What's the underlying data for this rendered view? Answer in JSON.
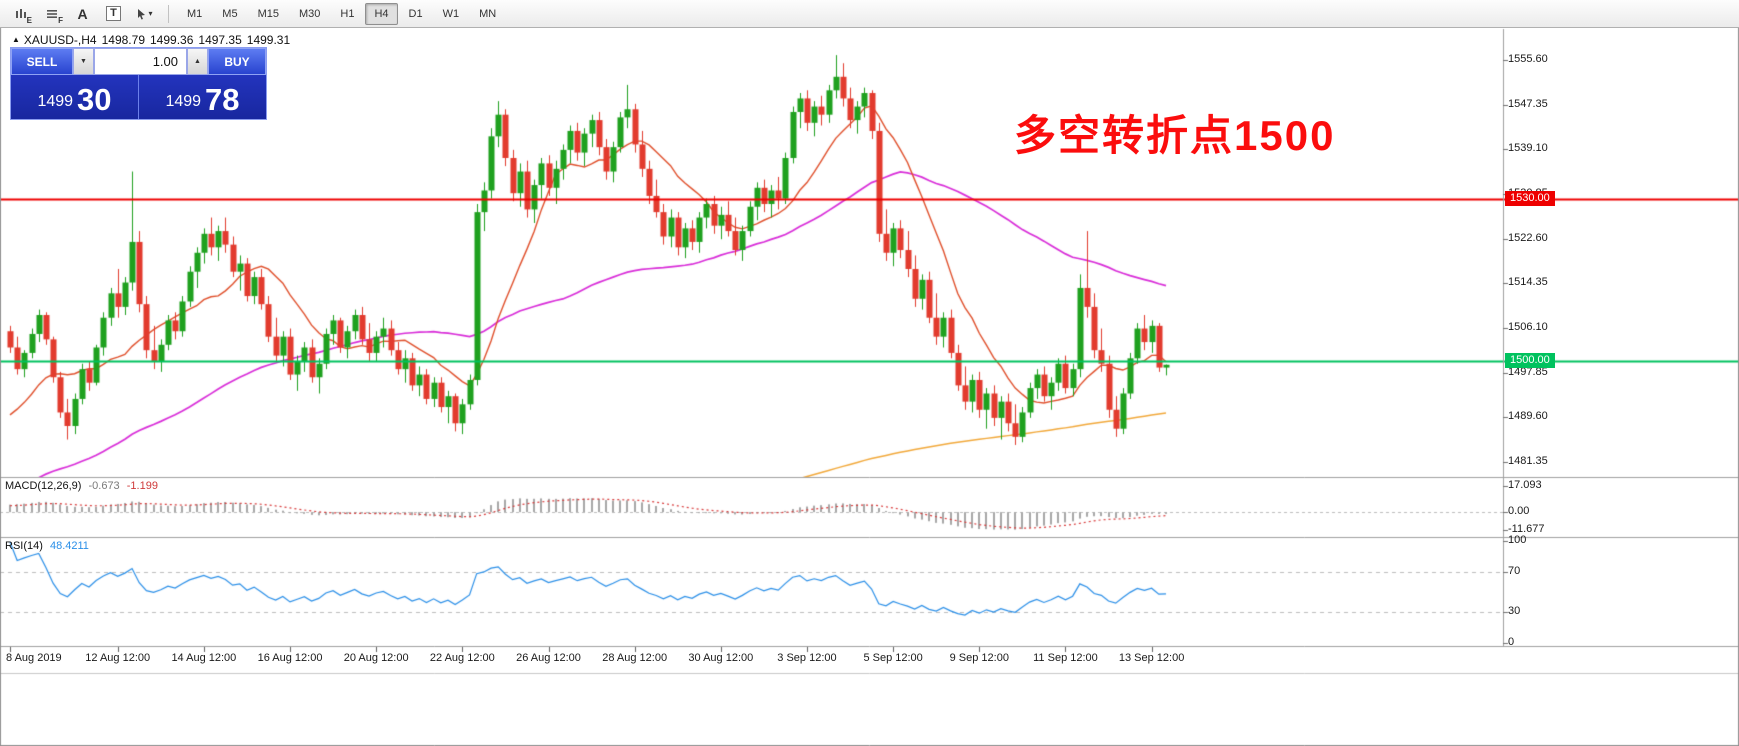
{
  "toolbar": {
    "icon_buttons": [
      {
        "name": "bars-chart-icon",
        "label": "E"
      },
      {
        "name": "lines-chart-icon",
        "label": "F"
      },
      {
        "name": "label-tool-icon",
        "label": "A"
      },
      {
        "name": "text-tool-icon",
        "label": "T"
      },
      {
        "name": "cursor-dropdown-icon",
        "label": "▾"
      }
    ],
    "timeframes": [
      {
        "label": "M1",
        "active": false
      },
      {
        "label": "M5",
        "active": false
      },
      {
        "label": "M15",
        "active": false
      },
      {
        "label": "M30",
        "active": false
      },
      {
        "label": "H1",
        "active": false
      },
      {
        "label": "H4",
        "active": true
      },
      {
        "label": "D1",
        "active": false
      },
      {
        "label": "W1",
        "active": false
      },
      {
        "label": "MN",
        "active": false
      }
    ]
  },
  "chart": {
    "ohlc_header": {
      "marker": "▲",
      "symbol_timeframe": "XAUUSD-,H4",
      "open": "1498.79",
      "high": "1499.36",
      "low": "1497.35",
      "close": "1499.31"
    },
    "trade_panel": {
      "sell_label": "SELL",
      "buy_label": "BUY",
      "volume": "1.00",
      "down_glyph": "▼",
      "up_glyph": "▲",
      "sell_big": "1499",
      "sell_pips": "30",
      "buy_big": "1499",
      "buy_pips": "78"
    },
    "annotation": {
      "text": "多空转折点1500",
      "color": "#fb0d0d"
    },
    "hlines": [
      {
        "price": 1530.0,
        "tag": "1530.00",
        "color": "#ee0000",
        "tag_text_color": "#ffffff"
      },
      {
        "price": 1500.0,
        "tag": "1500.00",
        "color": "#00c25e",
        "tag_text_color": "#ffffff"
      }
    ]
  },
  "chart_data": {
    "type": "candlestick",
    "symbol": "XAUUSD-",
    "timeframe": "H4",
    "price_axis_ticks": [
      "1555.60",
      "1547.35",
      "1539.10",
      "1530.85",
      "1522.60",
      "1514.35",
      "1506.10",
      "1497.85",
      "1489.60",
      "1481.35"
    ],
    "x_labels": [
      {
        "text": "8 Aug 2019",
        "bar": 0
      },
      {
        "text": "12 Aug 12:00",
        "bar": 15
      },
      {
        "text": "14 Aug 12:00",
        "bar": 27
      },
      {
        "text": "16 Aug 12:00",
        "bar": 39
      },
      {
        "text": "20 Aug 12:00",
        "bar": 51
      },
      {
        "text": "22 Aug 12:00",
        "bar": 63
      },
      {
        "text": "26 Aug 12:00",
        "bar": 75
      },
      {
        "text": "28 Aug 12:00",
        "bar": 87
      },
      {
        "text": "30 Aug 12:00",
        "bar": 99
      },
      {
        "text": "3 Sep 12:00",
        "bar": 111
      },
      {
        "text": "5 Sep 12:00",
        "bar": 123
      },
      {
        "text": "9 Sep 12:00",
        "bar": 135
      },
      {
        "text": "11 Sep 12:00",
        "bar": 147
      },
      {
        "text": "13 Sep 12:00",
        "bar": 159
      }
    ],
    "candles": [
      [
        1505.5,
        1506.5,
        1501.5,
        1502.5
      ],
      [
        1502.5,
        1504.5,
        1497.5,
        1498.5
      ],
      [
        1498.5,
        1502.0,
        1497.0,
        1501.5
      ],
      [
        1501.5,
        1506.0,
        1500.5,
        1505.0
      ],
      [
        1505.0,
        1509.5,
        1503.5,
        1508.5
      ],
      [
        1508.5,
        1509.0,
        1503.0,
        1504.0
      ],
      [
        1504.0,
        1504.5,
        1496.0,
        1497.0
      ],
      [
        1497.0,
        1498.0,
        1489.5,
        1490.5
      ],
      [
        1490.5,
        1493.0,
        1485.5,
        1488.0
      ],
      [
        1488.0,
        1494.0,
        1486.5,
        1493.0
      ],
      [
        1493.0,
        1499.5,
        1492.0,
        1498.5
      ],
      [
        1498.5,
        1500.0,
        1494.5,
        1496.0
      ],
      [
        1496.0,
        1503.0,
        1495.5,
        1502.5
      ],
      [
        1502.5,
        1509.0,
        1501.0,
        1508.0
      ],
      [
        1508.0,
        1513.5,
        1506.5,
        1512.5
      ],
      [
        1512.5,
        1517.0,
        1508.0,
        1510.0
      ],
      [
        1510.0,
        1515.5,
        1508.5,
        1514.5
      ],
      [
        1514.5,
        1535.0,
        1513.0,
        1522.0
      ],
      [
        1522.0,
        1524.0,
        1509.0,
        1510.5
      ],
      [
        1510.5,
        1512.0,
        1500.5,
        1502.0
      ],
      [
        1502.0,
        1506.5,
        1498.5,
        1500.0
      ],
      [
        1500.0,
        1504.0,
        1498.0,
        1503.0
      ],
      [
        1503.0,
        1508.5,
        1502.0,
        1507.5
      ],
      [
        1507.5,
        1509.0,
        1504.0,
        1505.5
      ],
      [
        1505.5,
        1512.0,
        1504.5,
        1511.0
      ],
      [
        1511.0,
        1517.5,
        1510.0,
        1516.5
      ],
      [
        1516.5,
        1521.0,
        1513.5,
        1520.0
      ],
      [
        1520.0,
        1524.5,
        1518.0,
        1523.5
      ],
      [
        1523.5,
        1526.5,
        1519.5,
        1521.0
      ],
      [
        1521.0,
        1525.0,
        1518.5,
        1524.0
      ],
      [
        1524.0,
        1526.5,
        1520.0,
        1521.5
      ],
      [
        1521.5,
        1523.0,
        1515.5,
        1516.5
      ],
      [
        1516.5,
        1519.5,
        1513.0,
        1518.0
      ],
      [
        1518.0,
        1519.0,
        1511.0,
        1512.0
      ],
      [
        1512.0,
        1516.5,
        1510.5,
        1515.5
      ],
      [
        1515.5,
        1517.0,
        1509.5,
        1510.5
      ],
      [
        1510.5,
        1512.0,
        1503.5,
        1504.5
      ],
      [
        1504.5,
        1508.0,
        1500.0,
        1501.0
      ],
      [
        1501.0,
        1505.5,
        1499.0,
        1504.5
      ],
      [
        1504.5,
        1506.0,
        1496.5,
        1497.5
      ],
      [
        1497.5,
        1501.0,
        1494.5,
        1500.0
      ],
      [
        1500.0,
        1503.5,
        1498.0,
        1502.5
      ],
      [
        1502.5,
        1504.0,
        1496.0,
        1497.0
      ],
      [
        1497.0,
        1500.5,
        1494.0,
        1499.5
      ],
      [
        1499.5,
        1506.0,
        1498.5,
        1505.0
      ],
      [
        1505.0,
        1508.5,
        1503.0,
        1507.5
      ],
      [
        1507.5,
        1508.0,
        1501.5,
        1502.5
      ],
      [
        1502.5,
        1506.5,
        1500.5,
        1505.5
      ],
      [
        1505.5,
        1509.5,
        1504.0,
        1508.5
      ],
      [
        1508.5,
        1510.0,
        1503.0,
        1504.0
      ],
      [
        1504.0,
        1507.0,
        1500.0,
        1501.5
      ],
      [
        1501.5,
        1505.5,
        1500.0,
        1504.5
      ],
      [
        1504.5,
        1508.0,
        1502.5,
        1506.0
      ],
      [
        1506.0,
        1507.5,
        1501.0,
        1502.0
      ],
      [
        1502.0,
        1503.5,
        1497.5,
        1498.5
      ],
      [
        1498.5,
        1502.0,
        1496.0,
        1500.5
      ],
      [
        1500.5,
        1501.5,
        1494.5,
        1495.5
      ],
      [
        1495.5,
        1499.0,
        1493.5,
        1497.5
      ],
      [
        1497.5,
        1498.5,
        1492.0,
        1493.0
      ],
      [
        1493.0,
        1497.0,
        1491.5,
        1496.0
      ],
      [
        1496.0,
        1497.0,
        1490.5,
        1491.5
      ],
      [
        1491.5,
        1494.5,
        1488.5,
        1493.5
      ],
      [
        1493.5,
        1494.0,
        1487.0,
        1488.5
      ],
      [
        1488.5,
        1493.0,
        1486.5,
        1492.0
      ],
      [
        1492.0,
        1497.5,
        1491.0,
        1496.5
      ],
      [
        1496.5,
        1529.0,
        1495.5,
        1527.5
      ],
      [
        1527.5,
        1533.0,
        1524.0,
        1531.5
      ],
      [
        1531.5,
        1543.0,
        1530.0,
        1541.5
      ],
      [
        1541.5,
        1548.0,
        1539.5,
        1545.5
      ],
      [
        1545.5,
        1546.5,
        1536.0,
        1537.5
      ],
      [
        1537.5,
        1539.0,
        1529.5,
        1531.0
      ],
      [
        1531.0,
        1536.5,
        1528.5,
        1535.0
      ],
      [
        1535.0,
        1537.0,
        1526.5,
        1528.0
      ],
      [
        1528.0,
        1533.5,
        1525.5,
        1532.5
      ],
      [
        1532.5,
        1537.5,
        1530.0,
        1536.5
      ],
      [
        1536.5,
        1538.0,
        1530.5,
        1532.0
      ],
      [
        1532.0,
        1537.0,
        1529.0,
        1535.5
      ],
      [
        1535.5,
        1540.0,
        1533.5,
        1539.0
      ],
      [
        1539.0,
        1543.5,
        1536.5,
        1542.5
      ],
      [
        1542.5,
        1544.0,
        1537.0,
        1538.5
      ],
      [
        1538.5,
        1543.0,
        1536.0,
        1542.0
      ],
      [
        1542.0,
        1545.5,
        1539.5,
        1544.5
      ],
      [
        1544.5,
        1546.0,
        1538.0,
        1539.5
      ],
      [
        1539.5,
        1541.0,
        1533.5,
        1535.0
      ],
      [
        1535.0,
        1540.5,
        1533.0,
        1539.5
      ],
      [
        1539.5,
        1546.0,
        1538.5,
        1545.0
      ],
      [
        1545.0,
        1551.0,
        1543.0,
        1546.5
      ],
      [
        1546.5,
        1547.5,
        1538.5,
        1540.0
      ],
      [
        1540.0,
        1542.5,
        1534.0,
        1535.5
      ],
      [
        1535.5,
        1537.0,
        1529.0,
        1530.5
      ],
      [
        1530.5,
        1533.5,
        1526.5,
        1527.5
      ],
      [
        1527.5,
        1529.0,
        1521.5,
        1523.0
      ],
      [
        1523.0,
        1528.0,
        1521.0,
        1526.5
      ],
      [
        1526.5,
        1527.5,
        1519.5,
        1521.0
      ],
      [
        1521.0,
        1525.5,
        1519.0,
        1524.5
      ],
      [
        1524.5,
        1526.0,
        1520.5,
        1522.0
      ],
      [
        1522.0,
        1527.5,
        1520.0,
        1526.5
      ],
      [
        1526.5,
        1530.0,
        1524.5,
        1529.0
      ],
      [
        1529.0,
        1530.5,
        1523.5,
        1525.0
      ],
      [
        1525.0,
        1528.5,
        1522.5,
        1527.0
      ],
      [
        1527.0,
        1529.5,
        1523.0,
        1524.0
      ],
      [
        1524.0,
        1526.5,
        1519.5,
        1520.5
      ],
      [
        1520.5,
        1525.0,
        1518.5,
        1524.0
      ],
      [
        1524.0,
        1529.5,
        1523.0,
        1528.5
      ],
      [
        1528.5,
        1533.0,
        1526.0,
        1532.0
      ],
      [
        1532.0,
        1533.5,
        1527.5,
        1529.0
      ],
      [
        1529.0,
        1532.5,
        1526.5,
        1531.5
      ],
      [
        1531.5,
        1534.0,
        1528.0,
        1530.0
      ],
      [
        1530.0,
        1538.5,
        1529.0,
        1537.5
      ],
      [
        1537.5,
        1547.0,
        1536.5,
        1546.0
      ],
      [
        1546.0,
        1549.5,
        1543.0,
        1548.5
      ],
      [
        1548.5,
        1550.0,
        1542.5,
        1544.0
      ],
      [
        1544.0,
        1548.0,
        1541.5,
        1547.0
      ],
      [
        1547.0,
        1549.0,
        1543.5,
        1545.5
      ],
      [
        1545.5,
        1551.0,
        1544.0,
        1550.0
      ],
      [
        1550.0,
        1556.5,
        1548.5,
        1552.5
      ],
      [
        1552.5,
        1555.0,
        1547.0,
        1548.5
      ],
      [
        1548.5,
        1550.5,
        1543.0,
        1544.5
      ],
      [
        1544.5,
        1548.0,
        1542.0,
        1547.0
      ],
      [
        1547.0,
        1550.5,
        1545.0,
        1549.5
      ],
      [
        1549.5,
        1550.0,
        1541.0,
        1542.5
      ],
      [
        1542.5,
        1544.0,
        1522.0,
        1523.5
      ],
      [
        1523.5,
        1528.0,
        1518.5,
        1520.0
      ],
      [
        1520.0,
        1525.5,
        1517.5,
        1524.5
      ],
      [
        1524.5,
        1526.0,
        1519.0,
        1520.5
      ],
      [
        1520.5,
        1524.0,
        1515.5,
        1517.0
      ],
      [
        1517.0,
        1519.5,
        1510.0,
        1511.5
      ],
      [
        1511.5,
        1516.0,
        1509.5,
        1515.0
      ],
      [
        1515.0,
        1516.5,
        1507.0,
        1508.0
      ],
      [
        1508.0,
        1512.5,
        1503.0,
        1504.5
      ],
      [
        1504.5,
        1509.0,
        1502.5,
        1508.0
      ],
      [
        1508.0,
        1509.5,
        1500.5,
        1501.5
      ],
      [
        1501.5,
        1503.0,
        1494.5,
        1495.5
      ],
      [
        1495.5,
        1499.0,
        1491.0,
        1492.5
      ],
      [
        1492.5,
        1497.5,
        1490.5,
        1496.5
      ],
      [
        1496.5,
        1498.0,
        1489.5,
        1491.0
      ],
      [
        1491.0,
        1495.0,
        1487.5,
        1494.0
      ],
      [
        1494.0,
        1495.5,
        1488.0,
        1489.5
      ],
      [
        1489.5,
        1493.5,
        1485.5,
        1492.5
      ],
      [
        1492.5,
        1494.0,
        1487.0,
        1488.5
      ],
      [
        1488.5,
        1492.0,
        1484.5,
        1486.0
      ],
      [
        1486.0,
        1491.5,
        1485.0,
        1490.5
      ],
      [
        1490.5,
        1496.0,
        1489.5,
        1495.0
      ],
      [
        1495.0,
        1498.5,
        1493.0,
        1497.5
      ],
      [
        1497.5,
        1499.0,
        1492.5,
        1493.5
      ],
      [
        1493.5,
        1497.0,
        1491.0,
        1496.0
      ],
      [
        1496.0,
        1500.5,
        1494.5,
        1499.5
      ],
      [
        1499.5,
        1501.0,
        1494.0,
        1495.0
      ],
      [
        1495.0,
        1499.5,
        1493.5,
        1498.5
      ],
      [
        1498.5,
        1516.0,
        1497.0,
        1513.5
      ],
      [
        1513.5,
        1524.0,
        1508.0,
        1510.0
      ],
      [
        1510.0,
        1512.5,
        1500.5,
        1502.0
      ],
      [
        1502.0,
        1506.0,
        1498.0,
        1499.5
      ],
      [
        1499.5,
        1501.0,
        1489.5,
        1491.0
      ],
      [
        1491.0,
        1493.5,
        1486.0,
        1487.5
      ],
      [
        1487.5,
        1495.0,
        1486.5,
        1494.0
      ],
      [
        1494.0,
        1501.5,
        1493.0,
        1500.5
      ],
      [
        1500.5,
        1507.0,
        1499.5,
        1506.0
      ],
      [
        1506.0,
        1508.5,
        1502.0,
        1503.5
      ],
      [
        1503.5,
        1507.5,
        1501.5,
        1506.5
      ],
      [
        1506.5,
        1507.0,
        1498.0,
        1498.79
      ],
      [
        1498.79,
        1499.36,
        1497.35,
        1499.31
      ]
    ],
    "ma": [
      {
        "type": "sma",
        "period": 300,
        "color": "#f2a93b",
        "width": 1.5
      },
      {
        "type": "sma",
        "period": 60,
        "color": "#d92ed9",
        "width": 1.7
      },
      {
        "type": "sma",
        "period": 12,
        "color": "#e0502c",
        "width": 1.4
      }
    ],
    "prehistory": {
      "segments": [
        [
          1418,
          1446,
          180
        ],
        [
          1446,
          1468,
          80
        ],
        [
          1468,
          1492,
          40
        ]
      ]
    },
    "indicators": {
      "macd": {
        "label": "MACD(12,26,9)",
        "value_main": "-0.673",
        "value_signal": "-1.199",
        "fast": 12,
        "slow": 26,
        "signal": 9,
        "scale": [
          "17.093",
          "0.00",
          "-11.677"
        ],
        "scale_max": 17.093,
        "scale_min": -11.677
      },
      "rsi": {
        "label": "RSI(14)",
        "value_text": "48.4211",
        "period": 14,
        "levels": [
          70,
          30
        ],
        "scale": [
          "100",
          "70",
          "30",
          "0"
        ]
      }
    }
  },
  "colors": {
    "up": "#1fa11f",
    "down": "#e23b2e",
    "macd_hist": "#a8a8a8",
    "macd_signal": "#d93a3a",
    "rsi": "#2a8fe8",
    "grid_dash": "#bdbdbd",
    "separator": "#9f9f9f"
  }
}
